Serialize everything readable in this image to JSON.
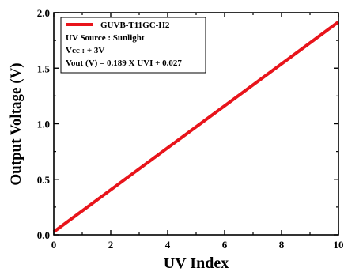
{
  "chart_data": {
    "type": "line",
    "xlabel": "UV Index",
    "ylabel": "Output Voltage (V)",
    "xlim": [
      0,
      10
    ],
    "ylim": [
      0.0,
      2.0
    ],
    "x_ticks": [
      "0",
      "2",
      "4",
      "6",
      "8",
      "10"
    ],
    "y_ticks": [
      "0.0",
      "0.5",
      "1.0",
      "1.5",
      "2.0"
    ],
    "grid": false,
    "legend_position": "top-left",
    "series": [
      {
        "name": "GUVB-T11GC-H2",
        "color": "#e8141b",
        "x": [
          0,
          10
        ],
        "y": [
          0.027,
          1.917
        ]
      }
    ],
    "annotations": [
      "UV Source : Sunlight",
      "Vcc : + 3V",
      "Vout (V) = 0.189 X UVI + 0.027"
    ]
  }
}
